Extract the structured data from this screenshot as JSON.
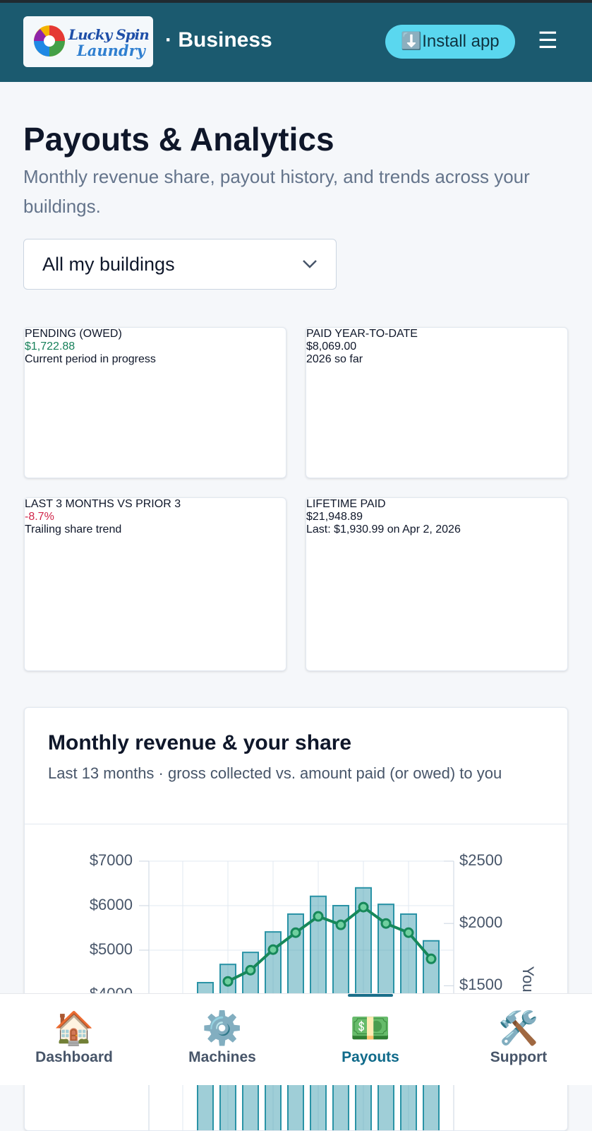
{
  "header": {
    "logo_line1": "Lucky Spin",
    "logo_line2": "Laundry",
    "section": "· Business",
    "install_button": "⬇️Install app",
    "menu_icon": "☰"
  },
  "page": {
    "title": "Payouts & Analytics",
    "subtitle": "Monthly revenue share, payout history, and trends across your buildings.",
    "building_filter": "All my buildings"
  },
  "stats": [
    {
      "label": "PENDING (OWED)",
      "value": "$1,722.88",
      "note": "Current period in progress",
      "color": "#17805a"
    },
    {
      "label": "PAID YEAR-TO-DATE",
      "value": "$8,069.00",
      "note": "2026 so far",
      "color": "#0f172a"
    },
    {
      "label": "LAST 3 MONTHS VS PRIOR 3",
      "value": "-8.7%",
      "note": "Trailing share trend",
      "color": "#d0264a"
    },
    {
      "label": "LIFETIME PAID",
      "value": "$21,948.89",
      "note": "Last: $1,930.99 on Apr 2, 2026",
      "color": "#0f172a"
    }
  ],
  "chart_card": {
    "title": "Monthly revenue & your share",
    "subtitle": "Last 13 months · gross collected vs. amount paid (or owed) to you",
    "chart_data": {
      "type": "combo",
      "y2_label": "You",
      "ylim": [
        0,
        7000
      ],
      "yticks": [
        {
          "value": 7000,
          "label": "$7000"
        },
        {
          "value": 6000,
          "label": "$6000"
        },
        {
          "value": 5000,
          "label": "$5000"
        },
        {
          "value": 4000,
          "label": "$4000"
        }
      ],
      "y2lim": [
        0,
        2500
      ],
      "y2ticks": [
        {
          "value": 2500,
          "label": "$2500"
        },
        {
          "value": 2000,
          "label": "$2000"
        },
        {
          "value": 1500,
          "label": "$1500"
        }
      ],
      "grid": true,
      "series": [
        {
          "type": "bar",
          "color": "#2a93a6",
          "values": [
            null,
            null,
            4270,
            4680,
            4950,
            5410,
            5810,
            6210,
            6000,
            6400,
            6030,
            5810,
            5210
          ]
        },
        {
          "type": "line",
          "axis": "y2",
          "color": "#17885a",
          "values": [
            null,
            null,
            null,
            1535,
            1625,
            1790,
            1926,
            2057,
            1989,
            2131,
            2000,
            1926,
            1716
          ]
        }
      ]
    }
  },
  "nav": [
    {
      "icon": "🏠",
      "label": "Dashboard"
    },
    {
      "icon": "⚙️",
      "label": "Machines"
    },
    {
      "icon": "💵",
      "label": "Payouts",
      "active": true
    },
    {
      "icon": "🛠️",
      "label": "Support"
    }
  ]
}
